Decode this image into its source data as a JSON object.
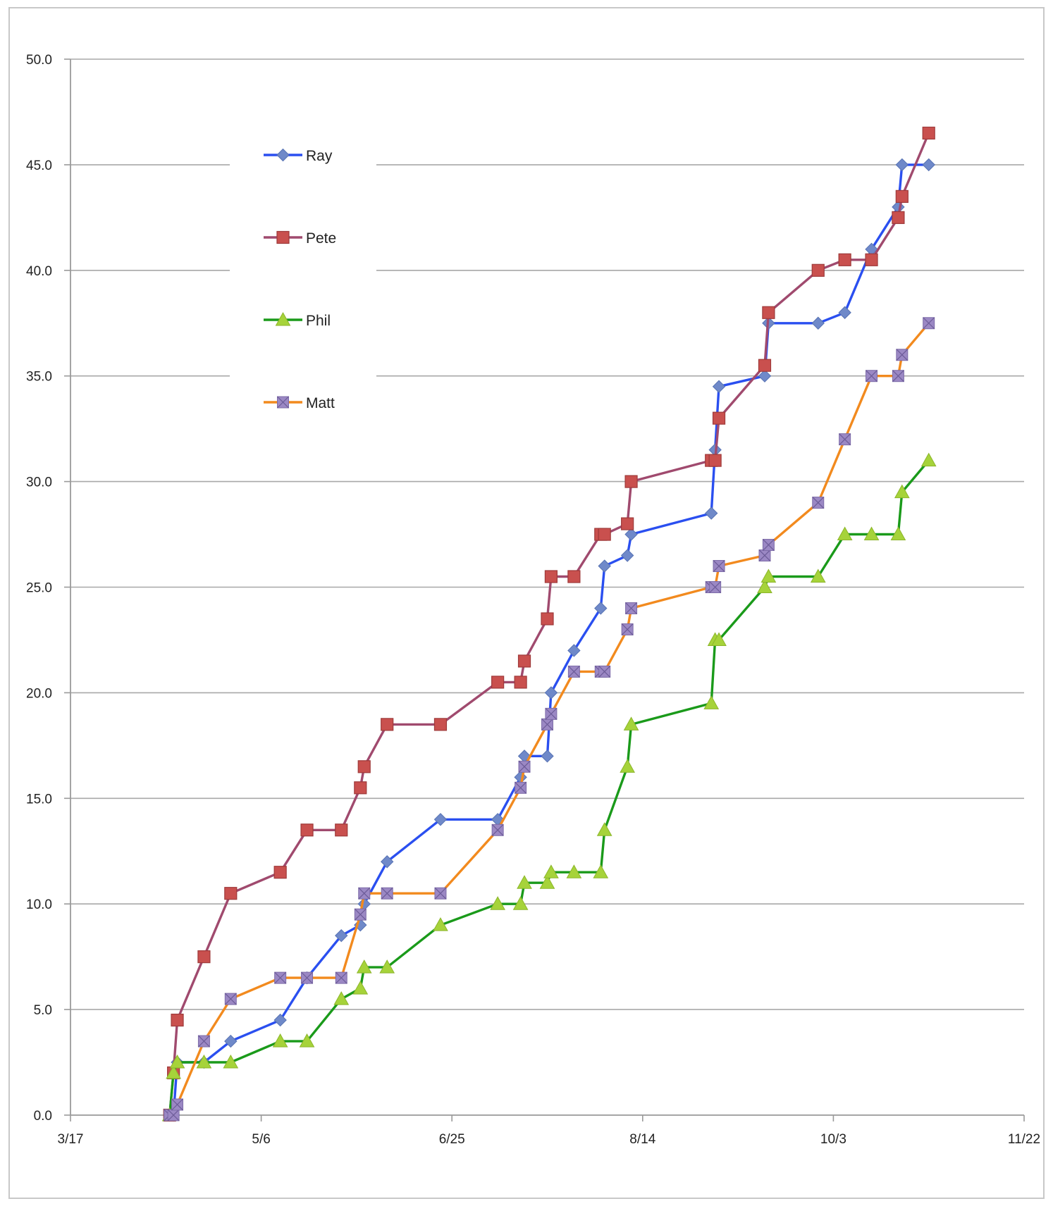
{
  "chart_data": {
    "type": "line",
    "title": "",
    "xlabel": "",
    "ylabel": "",
    "x_axis": {
      "type": "date",
      "year": 2008,
      "min": "3/17",
      "max": "11/22",
      "tick_labels": [
        "3/17",
        "5/6",
        "6/25",
        "8/14",
        "10/3",
        "11/22"
      ]
    },
    "y_axis": {
      "min": 0,
      "max": 50,
      "tick_labels": [
        "0.0",
        "5.0",
        "10.0",
        "15.0",
        "20.0",
        "25.0",
        "30.0",
        "35.0",
        "40.0",
        "45.0",
        "50.0"
      ]
    },
    "grid": "horizontal",
    "legend": {
      "position": "top-left"
    },
    "series": [
      {
        "name": "Ray",
        "color": "#2a4ff0",
        "marker_color": "#6f89c9",
        "marker": "diamond",
        "points": [
          [
            "4/12",
            0
          ],
          [
            "4/13",
            0
          ],
          [
            "4/14",
            2.5
          ],
          [
            "4/21",
            2.5
          ],
          [
            "4/28",
            3.5
          ],
          [
            "5/11",
            4.5
          ],
          [
            "5/18",
            6.5
          ],
          [
            "5/27",
            8.5
          ],
          [
            "6/1",
            9
          ],
          [
            "6/2",
            10
          ],
          [
            "6/8",
            12
          ],
          [
            "6/22",
            14
          ],
          [
            "7/7",
            14
          ],
          [
            "7/13",
            16
          ],
          [
            "7/14",
            17
          ],
          [
            "7/20",
            17
          ],
          [
            "7/21",
            20
          ],
          [
            "7/27",
            22
          ],
          [
            "8/3",
            24
          ],
          [
            "8/4",
            26
          ],
          [
            "8/10",
            26.5
          ],
          [
            "8/11",
            27.5
          ],
          [
            "9/1",
            28.5
          ],
          [
            "9/2",
            31.5
          ],
          [
            "9/3",
            34.5
          ],
          [
            "9/15",
            35
          ],
          [
            "9/16",
            37.5
          ],
          [
            "9/29",
            37.5
          ],
          [
            "10/6",
            38
          ],
          [
            "10/13",
            41
          ],
          [
            "10/20",
            43
          ],
          [
            "10/21",
            45
          ],
          [
            "10/28",
            45
          ]
        ]
      },
      {
        "name": "Pete",
        "color": "#a04a6e",
        "marker_color": "#c9504e",
        "marker": "square",
        "points": [
          [
            "4/12",
            0
          ],
          [
            "4/13",
            2
          ],
          [
            "4/14",
            4.5
          ],
          [
            "4/21",
            7.5
          ],
          [
            "4/28",
            10.5
          ],
          [
            "5/11",
            11.5
          ],
          [
            "5/18",
            13.5
          ],
          [
            "5/27",
            13.5
          ],
          [
            "6/1",
            15.5
          ],
          [
            "6/2",
            16.5
          ],
          [
            "6/8",
            18.5
          ],
          [
            "6/22",
            18.5
          ],
          [
            "7/7",
            20.5
          ],
          [
            "7/13",
            20.5
          ],
          [
            "7/14",
            21.5
          ],
          [
            "7/20",
            23.5
          ],
          [
            "7/21",
            25.5
          ],
          [
            "7/27",
            25.5
          ],
          [
            "8/3",
            27.5
          ],
          [
            "8/4",
            27.5
          ],
          [
            "8/10",
            28
          ],
          [
            "8/11",
            30
          ],
          [
            "9/1",
            31
          ],
          [
            "9/2",
            31
          ],
          [
            "9/3",
            33
          ],
          [
            "9/15",
            35.5
          ],
          [
            "9/16",
            38
          ],
          [
            "9/29",
            40
          ],
          [
            "10/6",
            40.5
          ],
          [
            "10/13",
            40.5
          ],
          [
            "10/20",
            42.5
          ],
          [
            "10/21",
            43.5
          ],
          [
            "10/28",
            46.5
          ]
        ]
      },
      {
        "name": "Phil",
        "color": "#1a9a1a",
        "marker_color": "#a6d33a",
        "marker": "triangle",
        "points": [
          [
            "4/12",
            0
          ],
          [
            "4/13",
            2
          ],
          [
            "4/14",
            2.5
          ],
          [
            "4/21",
            2.5
          ],
          [
            "4/28",
            2.5
          ],
          [
            "5/11",
            3.5
          ],
          [
            "5/18",
            3.5
          ],
          [
            "5/27",
            5.5
          ],
          [
            "6/1",
            6
          ],
          [
            "6/2",
            7
          ],
          [
            "6/8",
            7
          ],
          [
            "6/22",
            9
          ],
          [
            "7/7",
            10
          ],
          [
            "7/13",
            10
          ],
          [
            "7/14",
            11
          ],
          [
            "7/20",
            11
          ],
          [
            "7/21",
            11.5
          ],
          [
            "7/27",
            11.5
          ],
          [
            "8/3",
            11.5
          ],
          [
            "8/4",
            13.5
          ],
          [
            "8/10",
            16.5
          ],
          [
            "8/11",
            18.5
          ],
          [
            "9/1",
            19.5
          ],
          [
            "9/2",
            22.5
          ],
          [
            "9/3",
            22.5
          ],
          [
            "9/15",
            25
          ],
          [
            "9/16",
            25.5
          ],
          [
            "9/29",
            25.5
          ],
          [
            "10/6",
            27.5
          ],
          [
            "10/13",
            27.5
          ],
          [
            "10/20",
            27.5
          ],
          [
            "10/21",
            29.5
          ],
          [
            "10/28",
            31
          ]
        ]
      },
      {
        "name": "Matt",
        "color": "#f28a1e",
        "marker_color": "#9b88c4",
        "marker": "square-x",
        "points": [
          [
            "4/12",
            0
          ],
          [
            "4/13",
            0
          ],
          [
            "4/14",
            0.5
          ],
          [
            "4/21",
            3.5
          ],
          [
            "4/28",
            5.5
          ],
          [
            "5/11",
            6.5
          ],
          [
            "5/18",
            6.5
          ],
          [
            "5/27",
            6.5
          ],
          [
            "6/1",
            9.5
          ],
          [
            "6/2",
            10.5
          ],
          [
            "6/8",
            10.5
          ],
          [
            "6/22",
            10.5
          ],
          [
            "7/7",
            13.5
          ],
          [
            "7/13",
            15.5
          ],
          [
            "7/14",
            16.5
          ],
          [
            "7/20",
            18.5
          ],
          [
            "7/21",
            19
          ],
          [
            "7/27",
            21
          ],
          [
            "8/3",
            21
          ],
          [
            "8/4",
            21
          ],
          [
            "8/10",
            23
          ],
          [
            "8/11",
            24
          ],
          [
            "9/1",
            25
          ],
          [
            "9/2",
            25
          ],
          [
            "9/3",
            26
          ],
          [
            "9/15",
            26.5
          ],
          [
            "9/16",
            27
          ],
          [
            "9/29",
            29
          ],
          [
            "10/6",
            32
          ],
          [
            "10/13",
            35
          ],
          [
            "10/20",
            35
          ],
          [
            "10/21",
            36
          ],
          [
            "10/28",
            37.5
          ]
        ]
      }
    ]
  }
}
